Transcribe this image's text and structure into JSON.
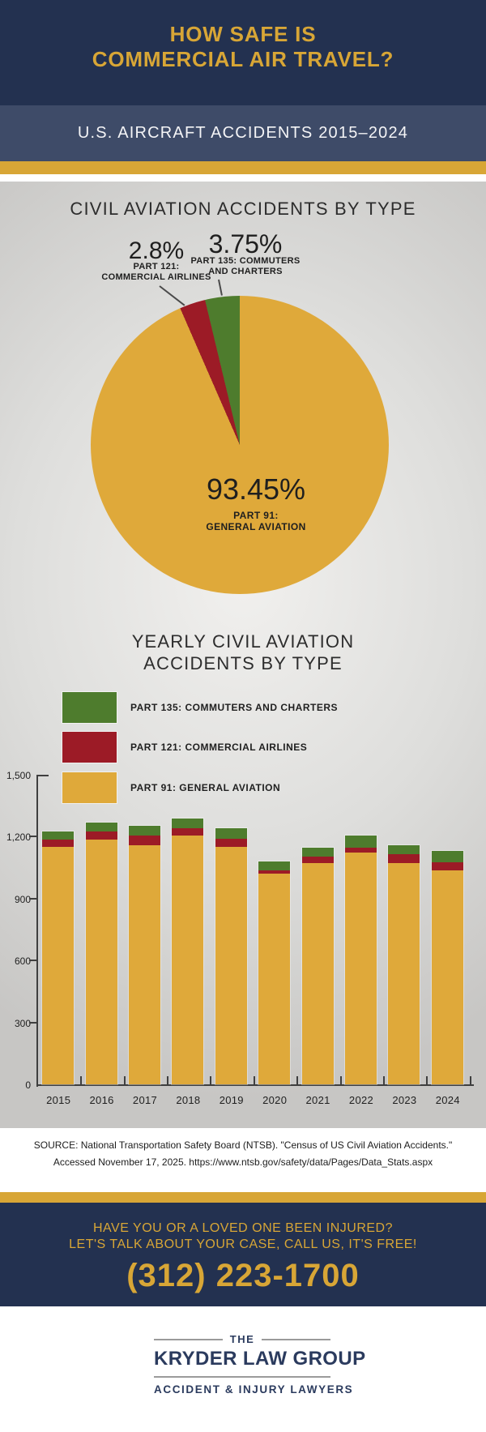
{
  "header": {
    "title_line1": "HOW SAFE IS",
    "title_line2": "COMMERCIAL AIR TRAVEL?",
    "subtitle": "U.S. AIRCRAFT ACCIDENTS 2015–2024"
  },
  "pie_labels": {
    "pct_121": "2.8%",
    "cap_121_line1": "PART 121:",
    "cap_121_line2": "COMMERCIAL AIRLINES",
    "pct_135": "3.75%",
    "cap_135_line1": "PART 135: COMMUTERS",
    "cap_135_line2": "AND CHARTERS",
    "pct_91": "93.45%",
    "cap_91_line1": "PART 91:",
    "cap_91_line2": "GENERAL AVIATION"
  },
  "legend": [
    {
      "label": "PART 135: COMMUTERS AND CHARTERS",
      "color": "#4e7c2d"
    },
    {
      "label": "PART 121: COMMERCIAL AIRLINES",
      "color": "#9c1b26"
    },
    {
      "label": "PART 91: GENERAL AVIATION",
      "color": "#dfa93a"
    }
  ],
  "bar_axis": {
    "tick_values": [
      0,
      300,
      600,
      900,
      1200,
      1500
    ],
    "tick_labels": [
      "0",
      "300",
      "600",
      "900",
      "1,200",
      "1,500"
    ]
  },
  "chart_data": [
    {
      "type": "pie",
      "title": "CIVIL AVIATION ACCIDENTS BY TYPE",
      "slices": [
        {
          "label": "PART 91: GENERAL AVIATION",
          "value_pct": 93.45,
          "color": "#dfa93a"
        },
        {
          "label": "PART 121: COMMERCIAL AIRLINES",
          "value_pct": 2.8,
          "color": "#9c1b26"
        },
        {
          "label": "PART 135: COMMUTERS AND CHARTERS",
          "value_pct": 3.75,
          "color": "#4e7c2d"
        }
      ],
      "start_angle_deg": 0,
      "direction": "clockwise"
    },
    {
      "type": "bar",
      "stacked": true,
      "title": "YEARLY CIVIL AVIATION ACCIDENTS BY TYPE",
      "categories": [
        "2015",
        "2016",
        "2017",
        "2018",
        "2019",
        "2020",
        "2021",
        "2022",
        "2023",
        "2024"
      ],
      "series": [
        {
          "name": "PART 91: GENERAL AVIATION",
          "color": "#dfa93a",
          "values": [
            1150,
            1185,
            1158,
            1204,
            1150,
            1020,
            1071,
            1124,
            1070,
            1038
          ]
        },
        {
          "name": "PART 121: COMMERCIAL AIRLINES",
          "color": "#9c1b26",
          "values": [
            37,
            40,
            47,
            36,
            41,
            16,
            33,
            21,
            47,
            37
          ]
        },
        {
          "name": "PART 135: COMMUTERS AND CHARTERS",
          "color": "#4e7c2d",
          "values": [
            40,
            45,
            46,
            47,
            48,
            44,
            42,
            59,
            43,
            54
          ]
        }
      ],
      "ylim": [
        0,
        1500
      ],
      "yticks": [
        0,
        300,
        600,
        900,
        1200,
        1500
      ],
      "grid": false,
      "legend_position": "top-left"
    }
  ],
  "source": {
    "line1": "SOURCE: National Transportation Safety Board (NTSB). \"Census of US Civil Aviation Accidents.\"",
    "line2": "Accessed November 17, 2025. https://www.ntsb.gov/safety/data/Pages/Data_Stats.aspx"
  },
  "cta": {
    "line1": "HAVE YOU OR A LOVED ONE BEEN INJURED?",
    "line2": "LET'S TALK ABOUT YOUR CASE, CALL US, IT'S FREE!",
    "phone": "(312) 223-1700"
  },
  "logo": {
    "the": "THE",
    "name": "KRYDER LAW GROUP",
    "tagline": "ACCIDENT & INJURY LAWYERS"
  },
  "colors": {
    "navy": "#233150",
    "navy_light": "#3e4b68",
    "gold": "#d8a636",
    "bar_gold": "#dfa93a",
    "bar_red": "#9c1b26",
    "bar_green": "#4e7c2d",
    "panel_gray": "#d4d3d1",
    "logo_navy": "#2b3b5e"
  }
}
